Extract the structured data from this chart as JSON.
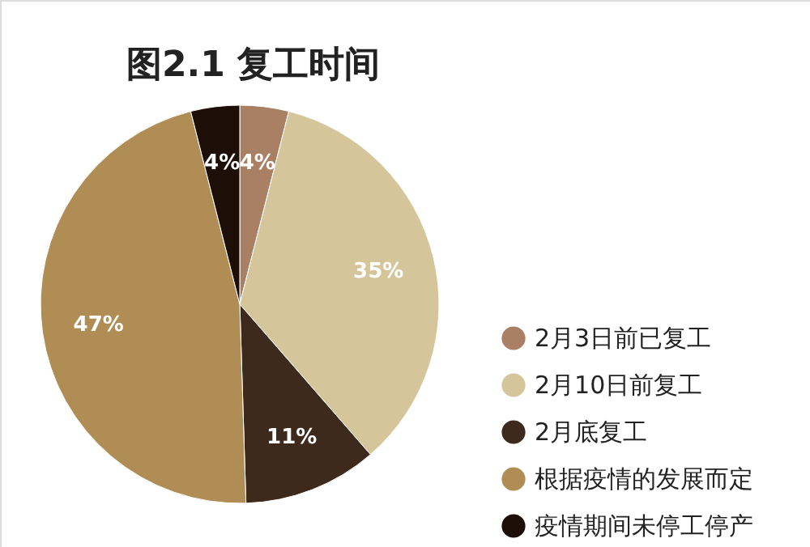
{
  "chart_data": {
    "type": "pie",
    "title": "图2.1  复工时间",
    "categories": [
      "2月3日前已复工",
      "2月10日前复工",
      "2月底复工",
      "根据疫情的发展而定",
      "疫情期间未停工停产"
    ],
    "values": [
      4,
      35,
      11,
      47,
      4
    ],
    "colors": [
      "#a98063",
      "#d4c59a",
      "#3e2a1c",
      "#b08d55",
      "#1d0f08"
    ],
    "value_labels": [
      "4%",
      "35%",
      "11%",
      "47%",
      "4%"
    ],
    "legend": "bottom right"
  }
}
